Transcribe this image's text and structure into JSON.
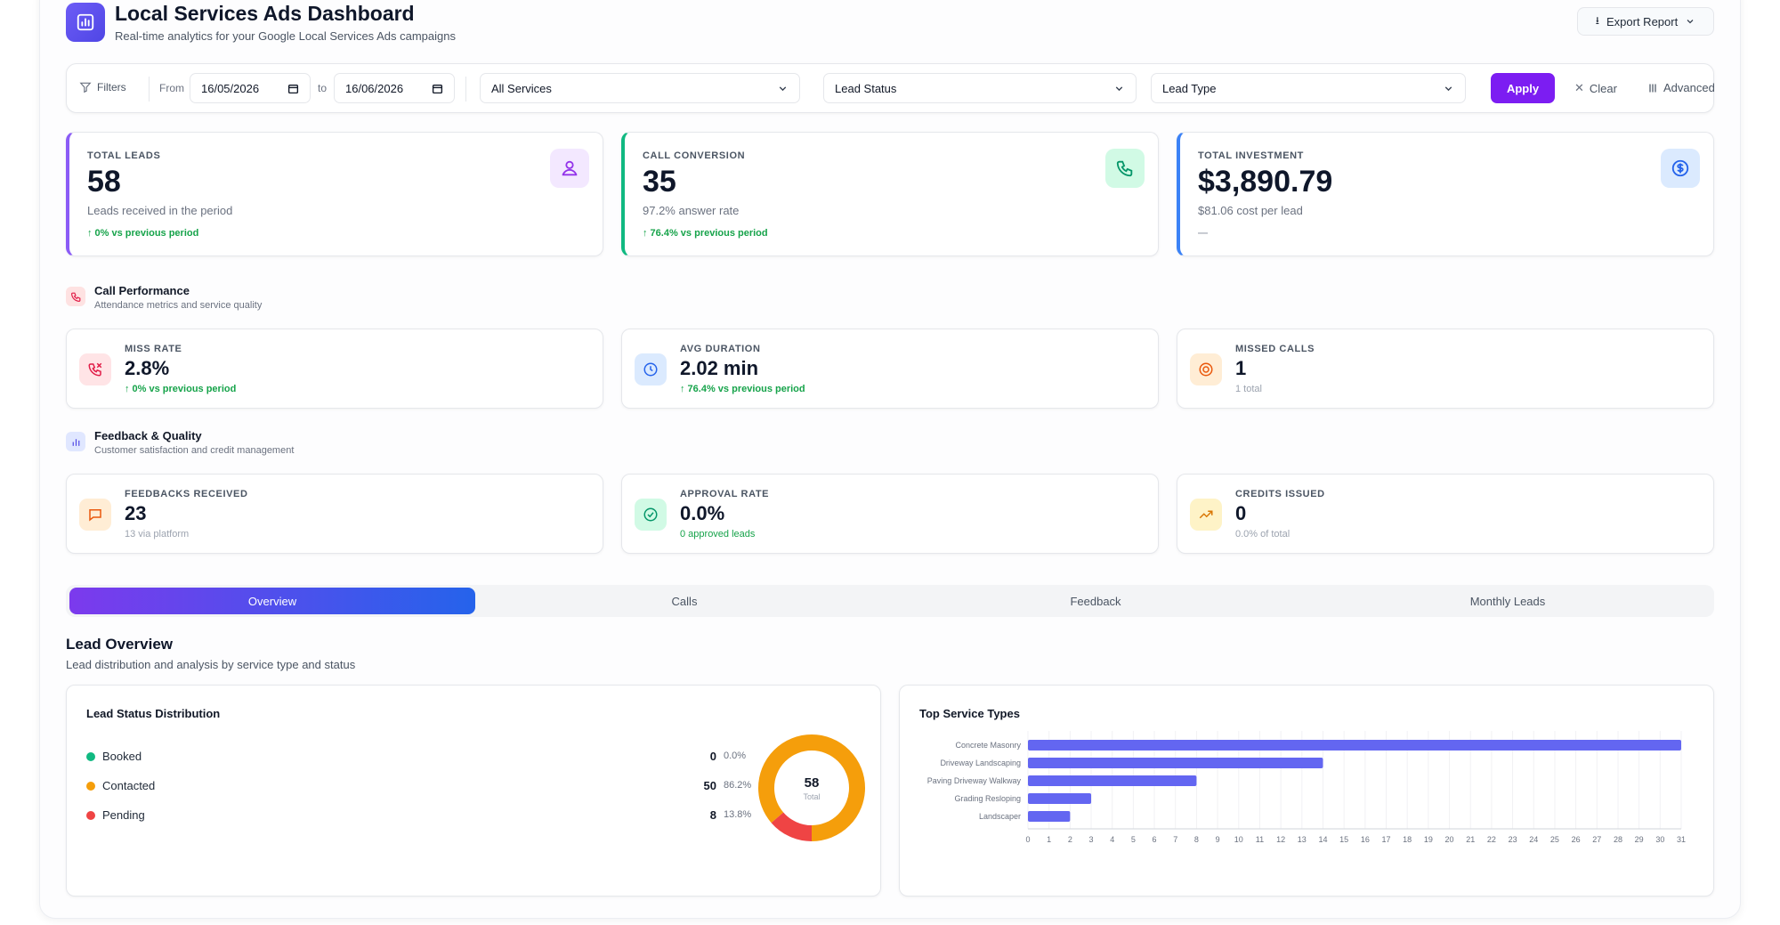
{
  "header": {
    "title": "Local Services Ads Dashboard",
    "subtitle": "Real-time analytics for your Google Local Services Ads campaigns",
    "export_label": "Export Report"
  },
  "filters": {
    "label": "Filters",
    "from_label": "From",
    "from_value": "16/05/2026",
    "to_label": "to",
    "to_value": "16/06/2026",
    "services": "All Services",
    "lead_status": "Lead Status",
    "lead_type": "Lead Type",
    "apply": "Apply",
    "clear": "Clear",
    "advanced": "Advanced"
  },
  "stats": [
    {
      "label": "Total Leads",
      "value": "58",
      "sub": "Leads received in the period",
      "trend": "↑ 0% vs previous period",
      "accent": "#7c3aed"
    },
    {
      "label": "Call Conversion",
      "value": "35",
      "sub": "97.2% answer rate",
      "trend": "↑ 76.4% vs previous period",
      "accent": "#10b981"
    },
    {
      "label": "Total Investment",
      "value": "$3,890.79",
      "sub": "$81.06 cost per lead",
      "trend": "—",
      "accent": "#3b82f6"
    }
  ],
  "call_performance": {
    "title": "Call Performance",
    "subtitle": "Attendance metrics and service quality",
    "cards": [
      {
        "label": "Miss Rate",
        "value": "2.8%",
        "sub": "↑ 0% vs previous period"
      },
      {
        "label": "Avg Duration",
        "value": "2.02 min",
        "sub": "↑ 76.4% vs previous period"
      },
      {
        "label": "Missed Calls",
        "value": "1",
        "sub": "1 total"
      }
    ]
  },
  "feedback_quality": {
    "title": "Feedback & Quality",
    "subtitle": "Customer satisfaction and credit management",
    "cards": [
      {
        "label": "Feedbacks Received",
        "value": "23",
        "sub": "13 via platform"
      },
      {
        "label": "Approval Rate",
        "value": "0.0%",
        "sub": "0 approved leads"
      },
      {
        "label": "Credits Issued",
        "value": "0",
        "sub": "0.0% of total"
      }
    ]
  },
  "tabs": [
    "Overview",
    "Calls",
    "Feedback",
    "Monthly Leads"
  ],
  "lead_overview": {
    "title": "Lead Overview",
    "subtitle": "Lead distribution and analysis by service type and status",
    "status_card_title": "Lead Status Distribution",
    "service_card_title": "Top Service Types",
    "donut_total": "58",
    "donut_total_label": "Total"
  },
  "chart_data": [
    {
      "type": "pie",
      "title": "Lead Status Distribution",
      "categories": [
        "Booked",
        "Contacted",
        "Pending"
      ],
      "values": [
        0,
        50,
        8
      ],
      "percents": [
        "0.0%",
        "86.2%",
        "13.8%"
      ],
      "colors": [
        "#10b981",
        "#f59e0b",
        "#ef4444"
      ]
    },
    {
      "type": "bar",
      "orientation": "horizontal",
      "title": "Top Service Types",
      "categories": [
        "Concrete Masonry",
        "Driveway Landscaping",
        "Paving Driveway Walkway",
        "Grading Resloping",
        "Landscaper"
      ],
      "values": [
        31,
        14,
        8,
        3,
        2
      ],
      "xlim": [
        0,
        31
      ],
      "bar_color": "#6366f1",
      "grid": true
    }
  ]
}
